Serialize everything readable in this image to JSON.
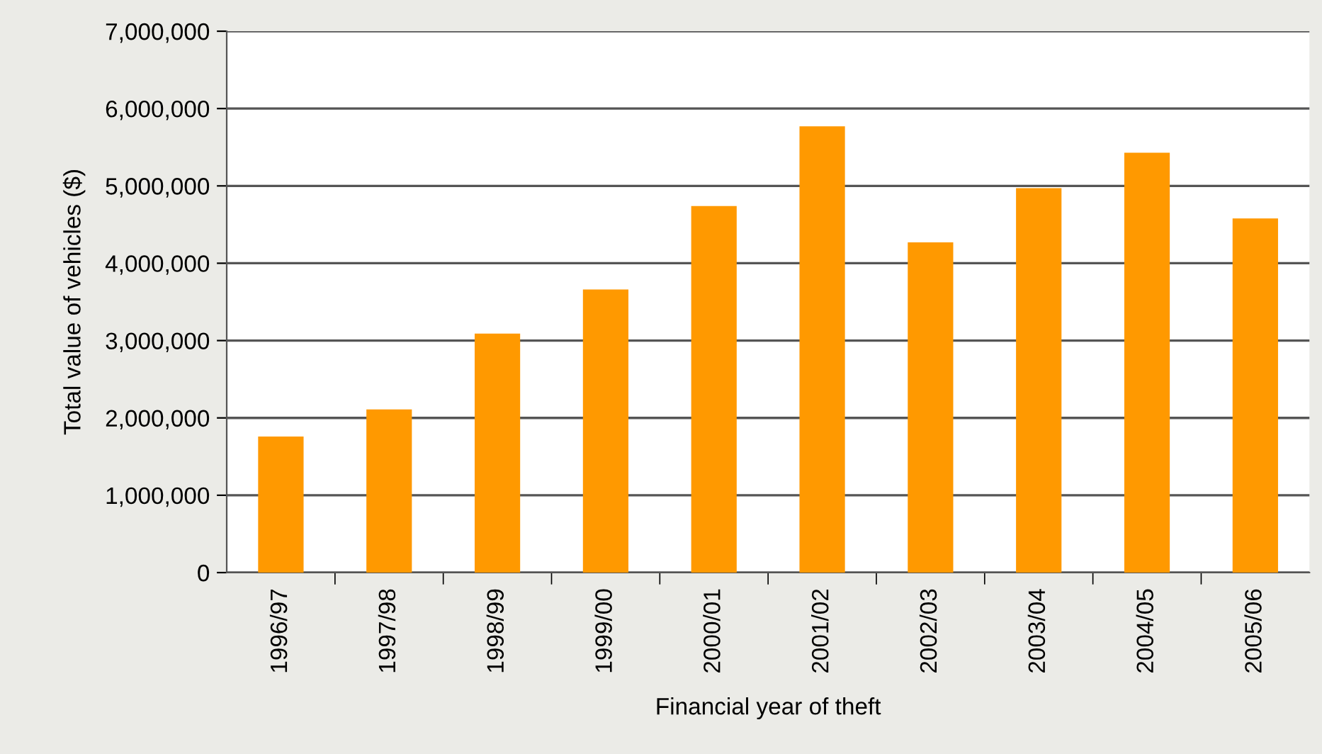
{
  "chart_data": {
    "type": "bar",
    "xlabel": "Financial year of theft",
    "ylabel": "Total value of vehicles ($)",
    "categories": [
      "1996/97",
      "1997/98",
      "1998/99",
      "1999/00",
      "2000/01",
      "2001/02",
      "2002/03",
      "2003/04",
      "2004/05",
      "2005/06"
    ],
    "values": [
      1760000,
      2110000,
      3090000,
      3660000,
      4740000,
      5770000,
      4270000,
      4970000,
      5430000,
      4580000
    ],
    "color": "#ff9900",
    "ylim": [
      0,
      7000000
    ],
    "yticks": [
      {
        "value": 0,
        "label": "0"
      },
      {
        "value": 1000000,
        "label": "1,000,000"
      },
      {
        "value": 2000000,
        "label": "2,000,000"
      },
      {
        "value": 3000000,
        "label": "3,000,000"
      },
      {
        "value": 4000000,
        "label": "4,000,000"
      },
      {
        "value": 5000000,
        "label": "5,000,000"
      },
      {
        "value": 6000000,
        "label": "6,000,000"
      },
      {
        "value": 7000000,
        "label": "7,000,000"
      }
    ],
    "grid": "y"
  }
}
